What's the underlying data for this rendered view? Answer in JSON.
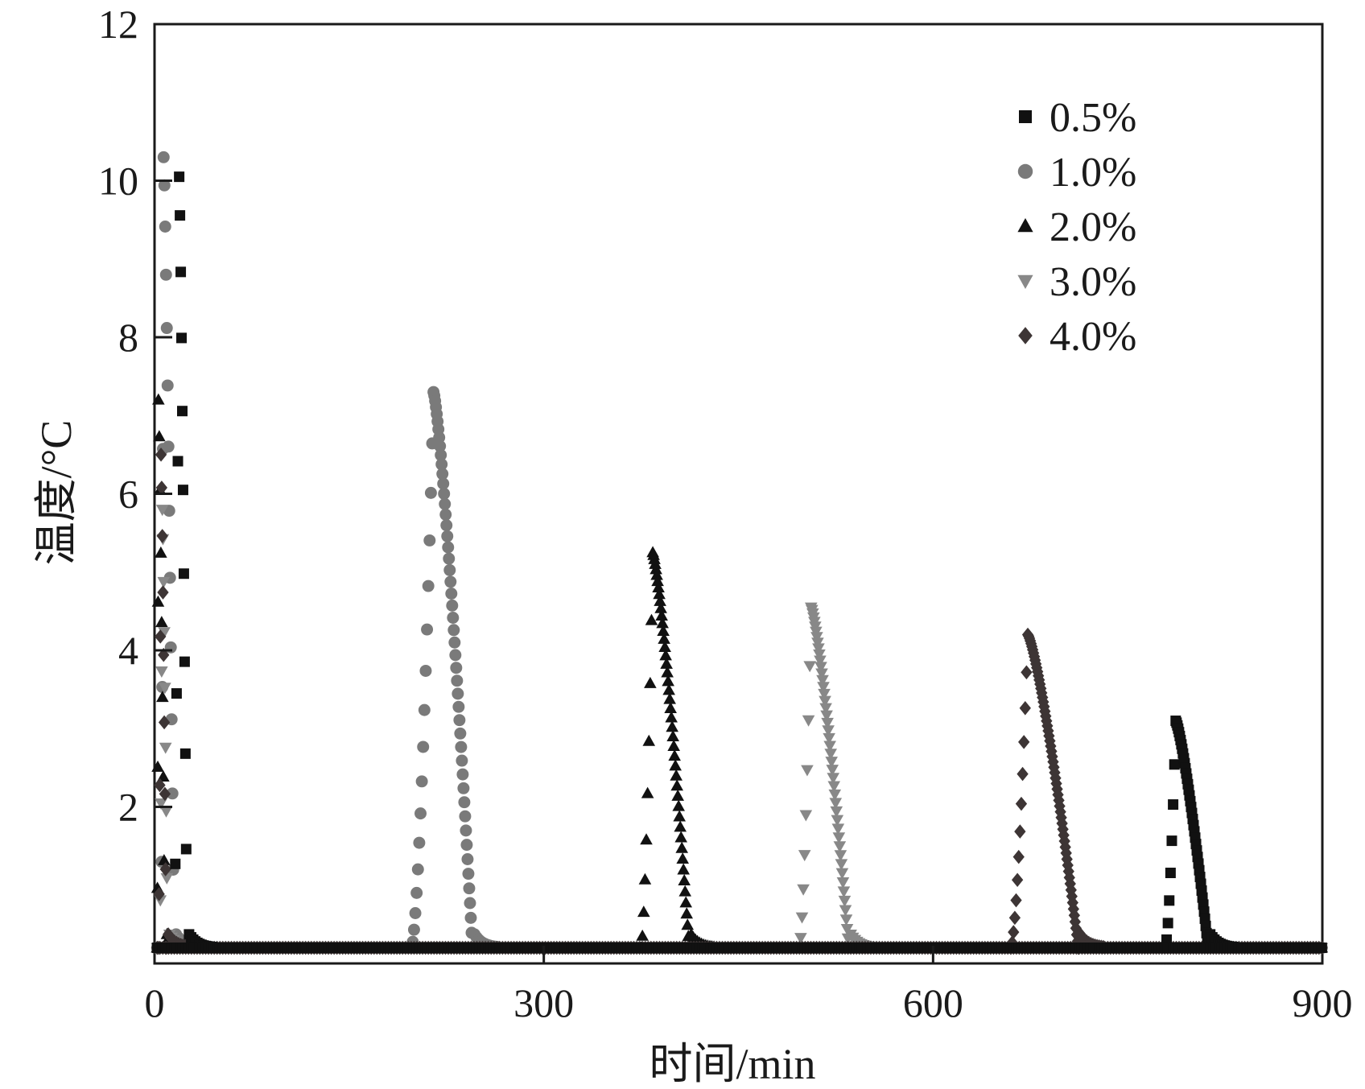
{
  "chart_data": {
    "type": "scatter",
    "xlabel": "时间/min",
    "ylabel": "温度/°C",
    "xlim": [
      0,
      900
    ],
    "ylim": [
      0,
      12
    ],
    "xticks": [
      0,
      300,
      600,
      900
    ],
    "yticks": [
      0,
      2,
      4,
      6,
      8,
      10,
      12
    ],
    "xtick_labels": [
      "0",
      "300",
      "600",
      "900"
    ],
    "ytick_labels": [
      "",
      "2",
      "4",
      "6",
      "8",
      "10",
      "12"
    ],
    "grid": false,
    "legend_position": "top-right",
    "baseline_temperature": 0.2,
    "series": [
      {
        "name": "0.5%",
        "marker": "square",
        "color": "#111111",
        "peaks": [
          {
            "start": 15,
            "peak_x": 19,
            "peak_y": 10.05,
            "end": 25
          },
          {
            "start": 779,
            "peak_x": 787,
            "peak_y": 3.1,
            "end": 812
          }
        ]
      },
      {
        "name": "1.0%",
        "marker": "circle",
        "color": "#7a7a7a",
        "peaks": [
          {
            "start": 5,
            "peak_x": 7,
            "peak_y": 10.3,
            "end": 15
          },
          {
            "start": 198,
            "peak_x": 215,
            "peak_y": 7.3,
            "end": 245
          }
        ]
      },
      {
        "name": "2.0%",
        "marker": "triangle-up",
        "color": "#111111",
        "peaks": [
          {
            "start": 2,
            "peak_x": 3,
            "peak_y": 7.2,
            "end": 8
          },
          {
            "start": 375,
            "peak_x": 384,
            "peak_y": 5.25,
            "end": 412
          }
        ]
      },
      {
        "name": "3.0%",
        "marker": "triangle-down",
        "color": "#888888",
        "peaks": [
          {
            "start": 4,
            "peak_x": 6,
            "peak_y": 5.8,
            "end": 10
          },
          {
            "start": 497,
            "peak_x": 506,
            "peak_y": 4.55,
            "end": 535
          }
        ]
      },
      {
        "name": "4.0%",
        "marker": "diamond",
        "color": "#3d3535",
        "peaks": [
          {
            "start": 3,
            "peak_x": 5,
            "peak_y": 6.5,
            "end": 9
          },
          {
            "start": 660,
            "peak_x": 673,
            "peak_y": 4.2,
            "end": 712
          }
        ]
      }
    ]
  }
}
